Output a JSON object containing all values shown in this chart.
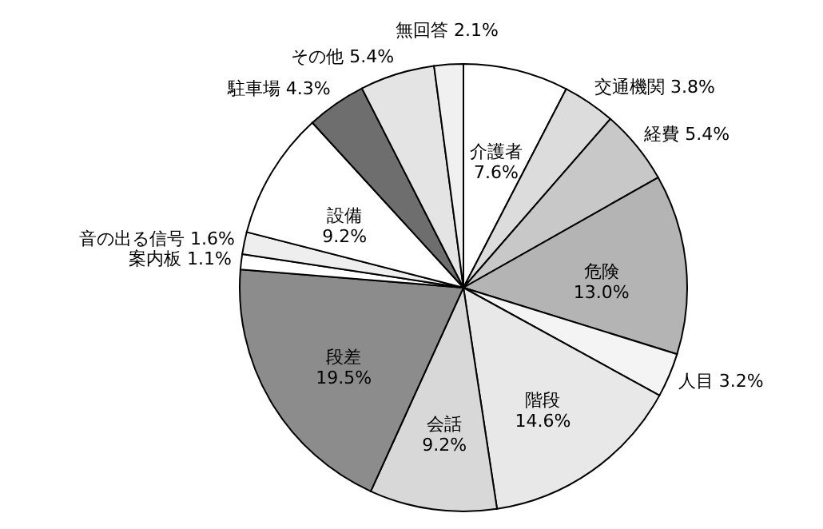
{
  "chart_data": {
    "type": "pie",
    "categories": [
      "介護者",
      "交通機関",
      "経費",
      "危険",
      "人目",
      "階段",
      "会話",
      "段差",
      "案内板",
      "音の出る信号",
      "設備",
      "駐車場",
      "その他",
      "無回答"
    ],
    "values": [
      7.6,
      3.8,
      5.4,
      13.0,
      3.2,
      14.6,
      9.2,
      19.5,
      1.1,
      1.6,
      9.2,
      4.3,
      5.4,
      2.1
    ],
    "value_labels": [
      "7.6%",
      "3.8%",
      "5.4%",
      "13.0%",
      "3.2%",
      "14.6%",
      "9.2%",
      "19.5%",
      "1.1%",
      "1.6%",
      "9.2%",
      "4.3%",
      "5.4%",
      "2.1%"
    ],
    "colors": [
      "#ffffff",
      "#dcdcdc",
      "#c8c8c8",
      "#b4b4b4",
      "#f4f4f4",
      "#e8e8e8",
      "#d8d8d8",
      "#8c8c8c",
      "#ffffff",
      "#eeeeee",
      "#ffffff",
      "#6e6e6e",
      "#e4e4e4",
      "#f0f0f0"
    ]
  }
}
